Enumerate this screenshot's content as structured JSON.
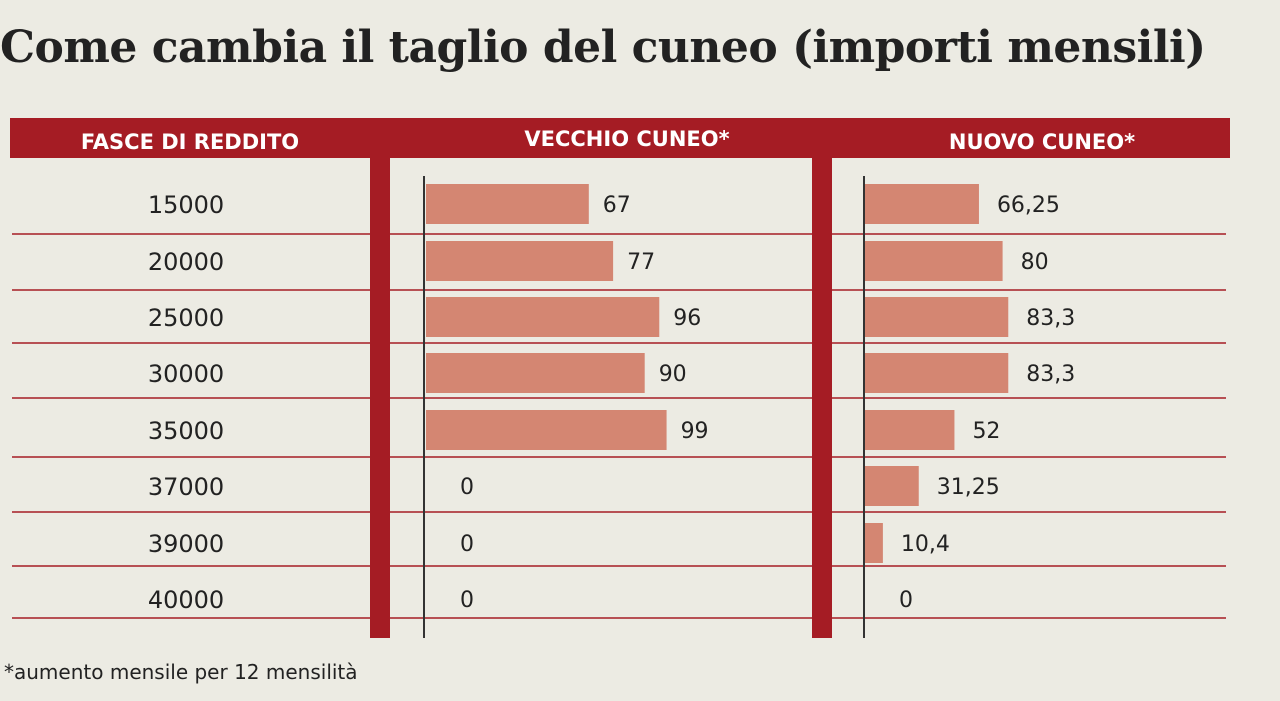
{
  "title": "Come cambia il taglio del cuneo (importi mensili)",
  "footnote": "*aumento mensile per 12 mensilità",
  "colors": {
    "header": "#a51c24",
    "bar": "#d48672",
    "row_line": "#a51c24",
    "axis": "#333333"
  },
  "chart_data": {
    "type": "bar",
    "orientation": "horizontal",
    "headers": {
      "category": "FASCE DI REDDITO",
      "old": "VECCHIO CUNEO*",
      "new": "NUOVO CUNEO*"
    },
    "categories": [
      "15000",
      "20000",
      "25000",
      "30000",
      "35000",
      "37000",
      "39000",
      "40000"
    ],
    "series": [
      {
        "name": "VECCHIO CUNEO*",
        "values": [
          67,
          77,
          96,
          90,
          99,
          0,
          0,
          0
        ],
        "labels": [
          "67",
          "77",
          "96",
          "90",
          "99",
          "0",
          "0",
          "0"
        ]
      },
      {
        "name": "NUOVO CUNEO*",
        "values": [
          66.25,
          80,
          83.3,
          83.3,
          52,
          31.25,
          10.4,
          0
        ],
        "labels": [
          "66,25",
          "80",
          "83,3",
          "83,3",
          "52",
          "31,25",
          "10,4",
          "0"
        ]
      }
    ],
    "xlim": [
      0,
      100
    ],
    "grid": false,
    "legend": "none"
  }
}
